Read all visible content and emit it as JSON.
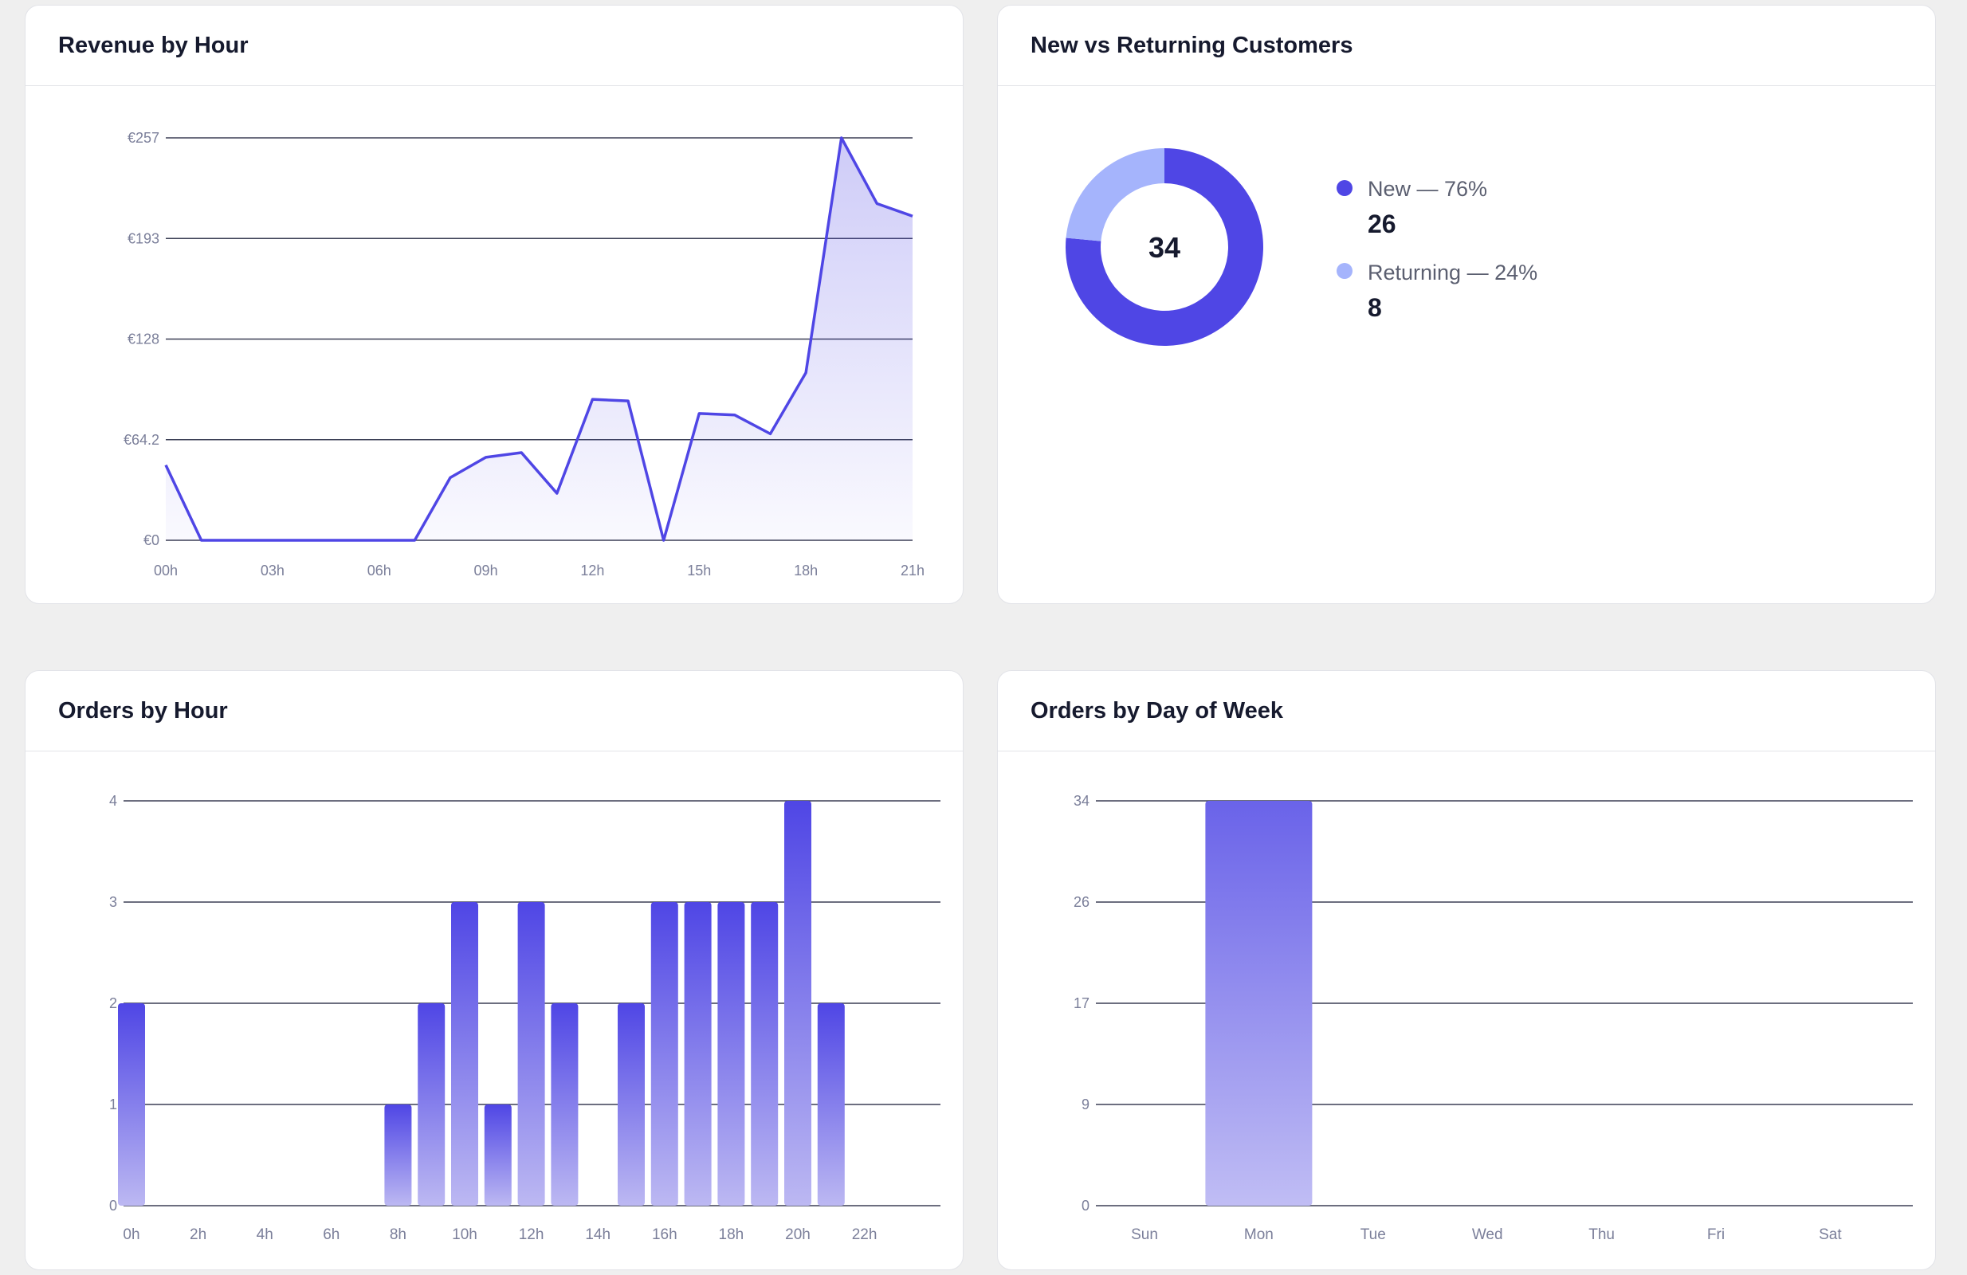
{
  "theme": {
    "accent": "#4f46e5",
    "accent_light": "#a5b4fc",
    "grid": "#3b3f55",
    "tick": "#7b7f9a"
  },
  "cards": {
    "revenue": {
      "title": "Revenue by Hour"
    },
    "customers": {
      "title": "New vs Returning Customers"
    },
    "orders_hour": {
      "title": "Orders by Hour"
    },
    "orders_dow": {
      "title": "Orders by Day of Week"
    }
  },
  "donut": {
    "center": "34",
    "items": [
      {
        "label": "New — 76%",
        "count": "26",
        "color": "#4f46e5"
      },
      {
        "label": "Returning — 24%",
        "count": "8",
        "color": "#a5b4fc"
      }
    ]
  },
  "chart_data": [
    {
      "id": "revenue",
      "type": "area",
      "title": "Revenue by Hour",
      "x_ticks": [
        "00h",
        "03h",
        "06h",
        "09h",
        "12h",
        "15h",
        "18h",
        "21h"
      ],
      "y_ticks": [
        "€257",
        "€193",
        "€128",
        "€64.2",
        "€0"
      ],
      "ylim": [
        0,
        257
      ],
      "x": [
        0,
        1,
        2,
        3,
        4,
        5,
        6,
        7,
        8,
        9,
        10,
        11,
        12,
        13,
        14,
        15,
        16,
        17,
        18,
        19,
        20,
        21
      ],
      "values": [
        48,
        0,
        0,
        0,
        0,
        0,
        0,
        0,
        40,
        53,
        56,
        30,
        90,
        89,
        0,
        81,
        80,
        68,
        107,
        257,
        215,
        207
      ],
      "grid": true
    },
    {
      "id": "customers",
      "type": "pie",
      "title": "New vs Returning Customers",
      "categories": [
        "New",
        "Returning"
      ],
      "values": [
        26,
        8
      ]
    },
    {
      "id": "orders_hour",
      "type": "bar",
      "title": "Orders by Hour",
      "x_ticks": [
        "0h",
        "2h",
        "4h",
        "6h",
        "8h",
        "10h",
        "12h",
        "14h",
        "16h",
        "18h",
        "20h",
        "22h"
      ],
      "y_ticks": [
        "4",
        "3",
        "2",
        "1",
        "0"
      ],
      "ylim": [
        0,
        4
      ],
      "values": [
        2,
        0,
        0,
        0,
        0,
        0,
        0,
        0,
        1,
        2,
        3,
        1,
        3,
        2,
        0,
        2,
        3,
        3,
        3,
        3,
        4,
        2,
        0,
        0
      ],
      "grid": true
    },
    {
      "id": "orders_dow",
      "type": "bar",
      "title": "Orders by Day of Week",
      "categories": [
        "Sun",
        "Mon",
        "Tue",
        "Wed",
        "Thu",
        "Fri",
        "Sat"
      ],
      "y_ticks": [
        "34",
        "26",
        "17",
        "9",
        "0"
      ],
      "ylim": [
        0,
        34
      ],
      "values": [
        0,
        34,
        0,
        0,
        0,
        0,
        0
      ],
      "grid": true
    }
  ]
}
